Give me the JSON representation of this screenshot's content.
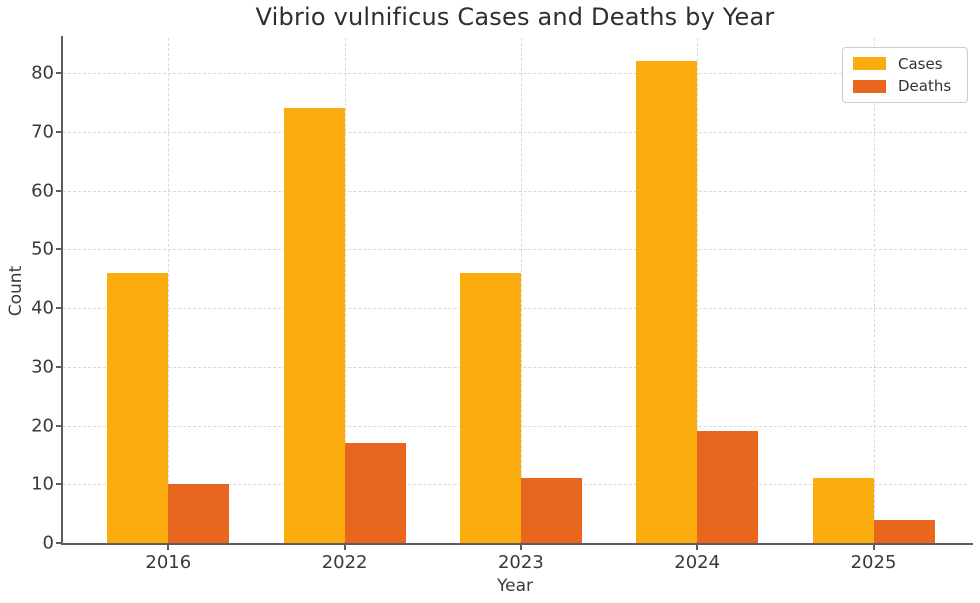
{
  "title": "Vibrio vulnificus Cases and Deaths by Year",
  "chart_data": {
    "type": "bar",
    "title": "Vibrio vulnificus Cases and Deaths by Year",
    "categories": [
      "2016",
      "2022",
      "2023",
      "2024",
      "2025"
    ],
    "series": [
      {
        "name": "Cases",
        "color": "#FBAD10",
        "values": [
          46,
          74,
          46,
          82,
          11
        ]
      },
      {
        "name": "Deaths",
        "color": "#E8661E",
        "values": [
          10,
          17,
          11,
          19,
          4
        ]
      }
    ],
    "xlabel": "Year",
    "ylabel": "Count",
    "ylim": [
      0,
      86
    ],
    "yticks": [
      0,
      10,
      20,
      30,
      40,
      50,
      60,
      70,
      80
    ],
    "grid": "dashed-both-axes",
    "legend_position": "upper right"
  }
}
